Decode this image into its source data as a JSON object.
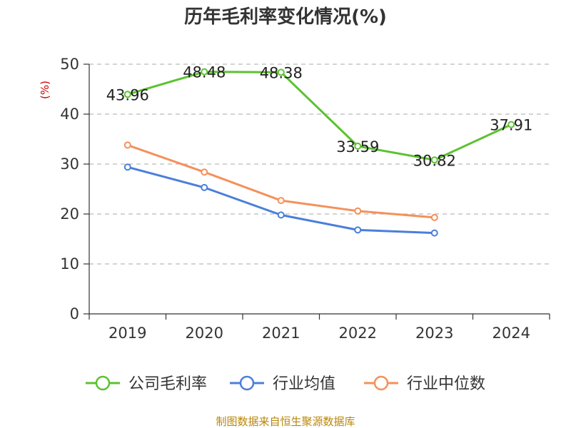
{
  "chart_data": {
    "type": "line",
    "title": "历年毛利率变化情况(%)",
    "ylabel": "(%)",
    "xlabel": "",
    "categories": [
      "2019",
      "2020",
      "2021",
      "2022",
      "2023",
      "2024"
    ],
    "ylim": [
      0,
      50
    ],
    "yticks": [
      0,
      10,
      20,
      30,
      40,
      50
    ],
    "grid": true,
    "legend_position": "bottom",
    "series": [
      {
        "name": "公司毛利率",
        "color": "#5cc230",
        "values": [
          43.96,
          48.48,
          48.38,
          33.59,
          30.82,
          37.91
        ],
        "labels": [
          "43.96",
          "48.48",
          "48.38",
          "33.59",
          "30.82",
          "37.91"
        ],
        "show_labels": true
      },
      {
        "name": "行业均值",
        "color": "#4a7fd9",
        "values": [
          29.4,
          25.3,
          19.8,
          16.8,
          16.2,
          null
        ],
        "show_labels": false
      },
      {
        "name": "行业中位数",
        "color": "#f5905a",
        "values": [
          33.8,
          28.4,
          22.7,
          20.6,
          19.3,
          null
        ],
        "show_labels": false
      }
    ]
  },
  "source": "制图数据来自恒生聚源数据库"
}
